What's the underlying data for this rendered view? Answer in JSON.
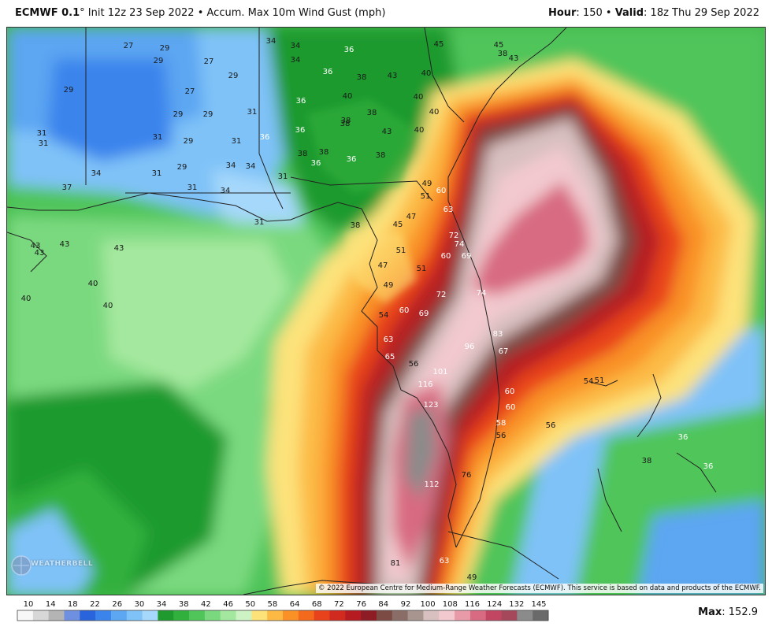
{
  "header": {
    "model": "ECMWF 0.1",
    "degree": "°",
    "init": " Init 12z 23 Sep 2022 • Accum. Max 10m Wind Gust (mph)",
    "hour_label": "Hour",
    "hour_value": ": 150 • ",
    "valid_label": "Valid",
    "valid_value": ": 18z Thu 29 Sep 2022"
  },
  "copyright": "© 2022 European Centre for Medium-Range Weather Forecasts (ECMWF). This service is based on data and products of the ECMWF.",
  "logo": "WEATHERBELL",
  "max": {
    "label": "Max",
    "value": ": 152.9"
  },
  "legend": {
    "ticks": [
      "10",
      "14",
      "18",
      "22",
      "26",
      "30",
      "34",
      "38",
      "42",
      "46",
      "50",
      "58",
      "64",
      "68",
      "72",
      "76",
      "84",
      "92",
      "100",
      "108",
      "116",
      "124",
      "132",
      "145"
    ],
    "colors": [
      "#f7f7f7",
      "#d7d7d7",
      "#b4b4b4",
      "#6f8fe0",
      "#2a64dc",
      "#3a84ec",
      "#5ca6f2",
      "#7fc2f8",
      "#a6d8fb",
      "#1e9a2e",
      "#32b03e",
      "#4fc55a",
      "#7ad97f",
      "#a4e89f",
      "#cdf2c3",
      "#fde27a",
      "#fcba45",
      "#f99126",
      "#f36a1c",
      "#e8421c",
      "#d12a1e",
      "#b61b22",
      "#8e1c24",
      "#7c4b44",
      "#8a6d66",
      "#a99590",
      "#d8c0c0",
      "#f2c9cf",
      "#e99aa8",
      "#d86b81",
      "#c24561",
      "#a6485c",
      "#8b8b8b",
      "#6a6a6a"
    ]
  },
  "labels": [
    {
      "t": "34",
      "c": "dark"
    },
    {
      "t": "34",
      "c": "dark"
    },
    {
      "t": "36",
      "c": "light"
    },
    {
      "t": "45",
      "c": "dark"
    },
    {
      "t": "45",
      "c": "dark"
    },
    {
      "t": "38",
      "c": "dark"
    },
    {
      "t": "43",
      "c": "dark"
    },
    {
      "t": "27",
      "c": "dark"
    },
    {
      "t": "29",
      "c": "dark"
    },
    {
      "t": "29",
      "c": "dark"
    },
    {
      "t": "27",
      "c": "dark"
    },
    {
      "t": "29",
      "c": "dark"
    },
    {
      "t": "34",
      "c": "dark"
    },
    {
      "t": "36",
      "c": "light"
    },
    {
      "t": "38",
      "c": "dark"
    },
    {
      "t": "43",
      "c": "dark"
    },
    {
      "t": "40",
      "c": "dark"
    },
    {
      "t": "29",
      "c": "dark"
    },
    {
      "t": "27",
      "c": "dark"
    },
    {
      "t": "36",
      "c": "light"
    },
    {
      "t": "40",
      "c": "dark"
    },
    {
      "t": "40",
      "c": "dark"
    },
    {
      "t": "29",
      "c": "dark"
    },
    {
      "t": "29",
      "c": "dark"
    },
    {
      "t": "31",
      "c": "dark"
    },
    {
      "t": "36",
      "c": "light"
    },
    {
      "t": "38",
      "c": "dark"
    },
    {
      "t": "38",
      "c": "dark"
    },
    {
      "t": "40",
      "c": "dark"
    },
    {
      "t": "31",
      "c": "dark"
    },
    {
      "t": "31",
      "c": "dark"
    },
    {
      "t": "31",
      "c": "dark"
    },
    {
      "t": "29",
      "c": "dark"
    },
    {
      "t": "31",
      "c": "dark"
    },
    {
      "t": "36",
      "c": "light"
    },
    {
      "t": "38",
      "c": "dark"
    },
    {
      "t": "43",
      "c": "dark"
    },
    {
      "t": "38",
      "c": "dark"
    },
    {
      "t": "40",
      "c": "dark"
    },
    {
      "t": "38",
      "c": "dark"
    },
    {
      "t": "38",
      "c": "dark"
    },
    {
      "t": "36",
      "c": "light"
    },
    {
      "t": "36",
      "c": "light"
    },
    {
      "t": "34",
      "c": "dark"
    },
    {
      "t": "34",
      "c": "dark"
    },
    {
      "t": "31",
      "c": "dark"
    },
    {
      "t": "29",
      "c": "dark"
    },
    {
      "t": "34",
      "c": "dark"
    },
    {
      "t": "31",
      "c": "dark"
    },
    {
      "t": "37",
      "c": "dark"
    },
    {
      "t": "31",
      "c": "dark"
    },
    {
      "t": "34",
      "c": "dark"
    },
    {
      "t": "31",
      "c": "dark"
    },
    {
      "t": "38",
      "c": "dark"
    },
    {
      "t": "45",
      "c": "dark"
    },
    {
      "t": "47",
      "c": "dark"
    },
    {
      "t": "49",
      "c": "dark"
    },
    {
      "t": "51",
      "c": "dark"
    },
    {
      "t": "60",
      "c": "light"
    },
    {
      "t": "63",
      "c": "light"
    },
    {
      "t": "43",
      "c": "dark"
    },
    {
      "t": "43",
      "c": "dark"
    },
    {
      "t": "43",
      "c": "dark"
    },
    {
      "t": "43",
      "c": "dark"
    },
    {
      "t": "40",
      "c": "dark"
    },
    {
      "t": "40",
      "c": "dark"
    },
    {
      "t": "40",
      "c": "dark"
    },
    {
      "t": "51",
      "c": "dark"
    },
    {
      "t": "72",
      "c": "light"
    },
    {
      "t": "74",
      "c": "light"
    },
    {
      "t": "60",
      "c": "light"
    },
    {
      "t": "69",
      "c": "light"
    },
    {
      "t": "47",
      "c": "dark"
    },
    {
      "t": "51",
      "c": "dark"
    },
    {
      "t": "49",
      "c": "dark"
    },
    {
      "t": "72",
      "c": "light"
    },
    {
      "t": "74",
      "c": "light"
    },
    {
      "t": "54",
      "c": "dark"
    },
    {
      "t": "60",
      "c": "light"
    },
    {
      "t": "69",
      "c": "light"
    },
    {
      "t": "83",
      "c": "light"
    },
    {
      "t": "63",
      "c": "light"
    },
    {
      "t": "96",
      "c": "light"
    },
    {
      "t": "67",
      "c": "light"
    },
    {
      "t": "65",
      "c": "light"
    },
    {
      "t": "56",
      "c": "dark"
    },
    {
      "t": "101",
      "c": "light"
    },
    {
      "t": "116",
      "c": "light"
    },
    {
      "t": "54",
      "c": "dark"
    },
    {
      "t": "51",
      "c": "dark"
    },
    {
      "t": "60",
      "c": "light"
    },
    {
      "t": "123",
      "c": "light"
    },
    {
      "t": "60",
      "c": "light"
    },
    {
      "t": "58",
      "c": "light"
    },
    {
      "t": "56",
      "c": "dark"
    },
    {
      "t": "56",
      "c": "dark"
    },
    {
      "t": "36",
      "c": "light"
    },
    {
      "t": "38",
      "c": "dark"
    },
    {
      "t": "36",
      "c": "light"
    },
    {
      "t": "76",
      "c": "dark"
    },
    {
      "t": "112",
      "c": "light"
    },
    {
      "t": "81",
      "c": "dark"
    },
    {
      "t": "63",
      "c": "light"
    },
    {
      "t": "49",
      "c": "dark"
    }
  ]
}
